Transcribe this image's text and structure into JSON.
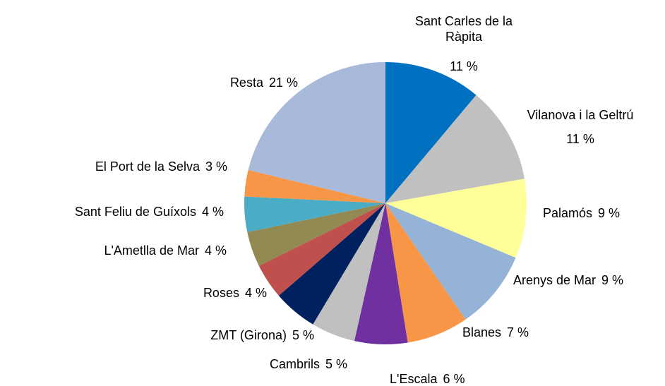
{
  "chart_data": {
    "type": "pie",
    "categories": [
      "Sant Carles de la Ràpita",
      "Vilanova i la Geltrú",
      "Palamós",
      "Arenys de Mar",
      "Blanes",
      "L'Escala",
      "Cambrils",
      "ZMT (Girona)",
      "Roses",
      "L'Ametlla de Mar",
      "Sant Feliu de Guíxols",
      "El Port de la Selva",
      "Resta"
    ],
    "values": [
      11,
      11,
      9,
      9,
      7,
      6,
      5,
      5,
      4,
      4,
      4,
      3,
      21
    ],
    "value_labels": [
      "11 %",
      "11 %",
      "9 %",
      "9 %",
      "7 %",
      "6 %",
      "5 %",
      "5 %",
      "4 %",
      "4 %",
      "4 %",
      "3 %",
      "21 %"
    ],
    "colors": [
      "#0070c0",
      "#c0c0c0",
      "#ffff99",
      "#95b3d7",
      "#f79646",
      "#7030a0",
      "#c0c0c0",
      "#002060",
      "#c0504d",
      "#938953",
      "#4bacc6",
      "#f79646",
      "#a9b9d9"
    ]
  }
}
